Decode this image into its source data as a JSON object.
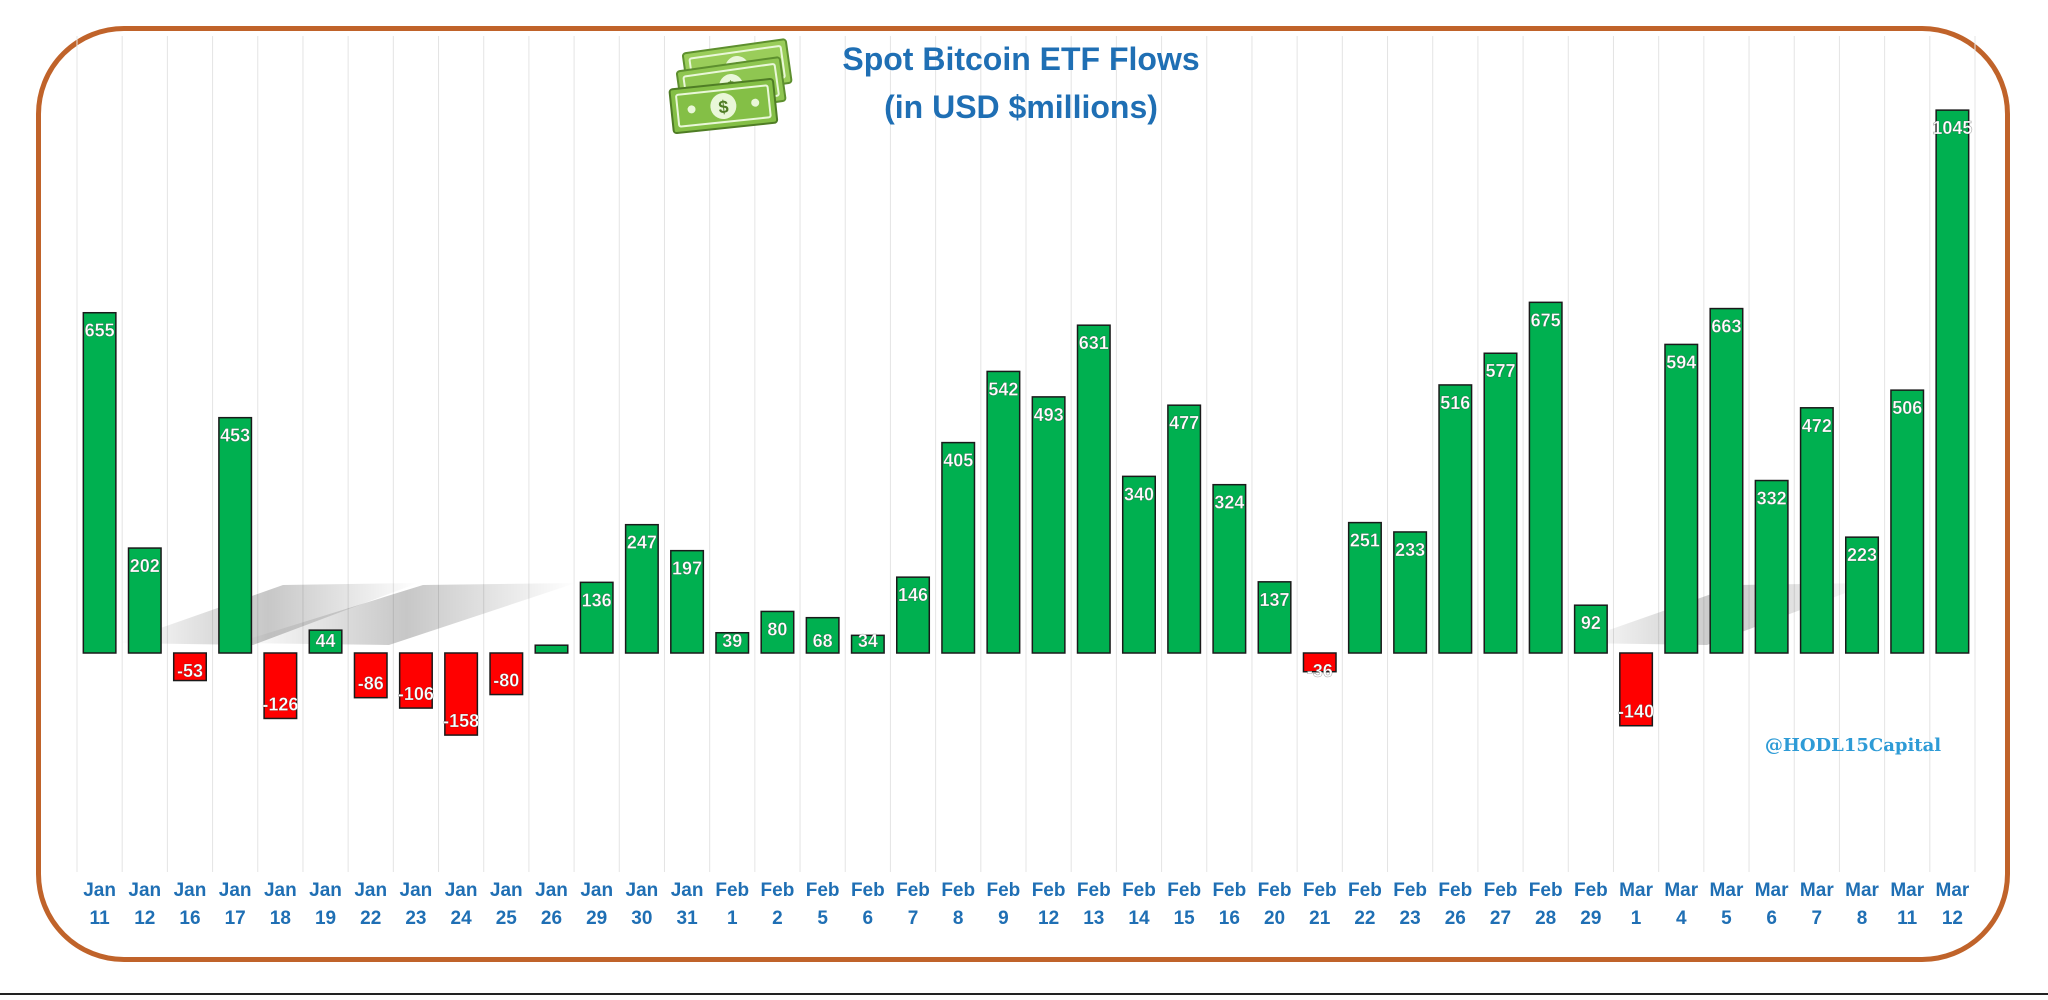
{
  "chart_data": {
    "type": "bar",
    "title": [
      "Spot Bitcoin ETF Flows",
      "(in USD $millions)"
    ],
    "watermark": "@HODL15Capital",
    "xlabel": "",
    "ylabel": "",
    "ylim": [
      -300,
      1100
    ],
    "grid": "vertical",
    "legend": "none",
    "categories": [
      [
        "Jan",
        "11"
      ],
      [
        "Jan",
        "12"
      ],
      [
        "Jan",
        "16"
      ],
      [
        "Jan",
        "17"
      ],
      [
        "Jan",
        "18"
      ],
      [
        "Jan",
        "19"
      ],
      [
        "Jan",
        "22"
      ],
      [
        "Jan",
        "23"
      ],
      [
        "Jan",
        "24"
      ],
      [
        "Jan",
        "25"
      ],
      [
        "Jan",
        "26"
      ],
      [
        "Jan",
        "29"
      ],
      [
        "Jan",
        "30"
      ],
      [
        "Jan",
        "31"
      ],
      [
        "Feb",
        "1"
      ],
      [
        "Feb",
        "2"
      ],
      [
        "Feb",
        "5"
      ],
      [
        "Feb",
        "6"
      ],
      [
        "Feb",
        "7"
      ],
      [
        "Feb",
        "8"
      ],
      [
        "Feb",
        "9"
      ],
      [
        "Feb",
        "12"
      ],
      [
        "Feb",
        "13"
      ],
      [
        "Feb",
        "14"
      ],
      [
        "Feb",
        "15"
      ],
      [
        "Feb",
        "16"
      ],
      [
        "Feb",
        "20"
      ],
      [
        "Feb",
        "21"
      ],
      [
        "Feb",
        "22"
      ],
      [
        "Feb",
        "23"
      ],
      [
        "Feb",
        "26"
      ],
      [
        "Feb",
        "27"
      ],
      [
        "Feb",
        "28"
      ],
      [
        "Feb",
        "29"
      ],
      [
        "Mar",
        "1"
      ],
      [
        "Mar",
        "4"
      ],
      [
        "Mar",
        "5"
      ],
      [
        "Mar",
        "6"
      ],
      [
        "Mar",
        "7"
      ],
      [
        "Mar",
        "8"
      ],
      [
        "Mar",
        "11"
      ],
      [
        "Mar",
        "12"
      ]
    ],
    "values": [
      655,
      202,
      -53,
      453,
      -126,
      44,
      -86,
      -106,
      -158,
      -80,
      15,
      136,
      247,
      197,
      39,
      80,
      68,
      34,
      146,
      405,
      542,
      493,
      631,
      340,
      477,
      324,
      137,
      -36,
      251,
      233,
      516,
      577,
      675,
      92,
      -140,
      594,
      663,
      332,
      472,
      223,
      506,
      1045
    ],
    "data_labels": [
      "655",
      "202",
      "-53",
      "453",
      "-126",
      "44",
      "-86",
      "-106",
      "-158",
      "-80",
      "",
      "136",
      "247",
      "197",
      "39",
      "80",
      "68",
      "34",
      "146",
      "405",
      "542",
      "493",
      "631",
      "340",
      "477",
      "324",
      "137",
      "-36",
      "251",
      "233",
      "516",
      "577",
      "675",
      "92",
      "-140",
      "594",
      "663",
      "332",
      "472",
      "223",
      "506",
      "1045"
    ],
    "colors": {
      "positive": "#00b050",
      "negative": "#ff0000",
      "axis_labels": "#1f6fb4",
      "title": "#1f6fb4",
      "frame": "#c0632a",
      "watermark": "#2e9bd6"
    }
  },
  "icons": {
    "title_icon": "money-stack-icon"
  }
}
